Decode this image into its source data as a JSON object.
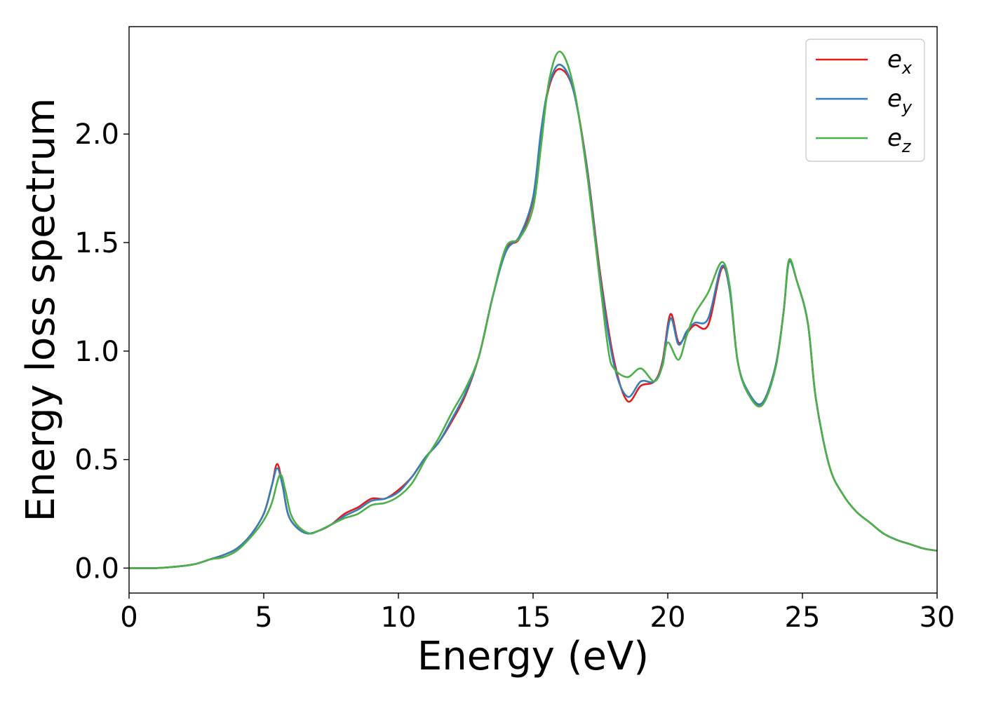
{
  "chart_data": {
    "type": "line",
    "xlabel": "Energy (eV)",
    "ylabel": "Energy loss spectrum",
    "xlim": [
      0,
      30
    ],
    "ylim": [
      -0.115,
      2.495
    ],
    "xticks": [
      "0",
      "5",
      "10",
      "15",
      "20",
      "25",
      "30"
    ],
    "yticks": [
      "0.0",
      "0.5",
      "1.0",
      "1.5",
      "2.0"
    ],
    "grid": false,
    "legend_position": "top-right",
    "series": [
      {
        "name": "e",
        "subscript": "x",
        "color": "#e41a1c",
        "points": [
          [
            0,
            0.0
          ],
          [
            1,
            0.0
          ],
          [
            2,
            0.01
          ],
          [
            2.5,
            0.02
          ],
          [
            3,
            0.04
          ],
          [
            3.5,
            0.06
          ],
          [
            4,
            0.09
          ],
          [
            4.5,
            0.15
          ],
          [
            5,
            0.25
          ],
          [
            5.3,
            0.38
          ],
          [
            5.5,
            0.48
          ],
          [
            5.7,
            0.38
          ],
          [
            5.9,
            0.25
          ],
          [
            6.2,
            0.19
          ],
          [
            6.6,
            0.16
          ],
          [
            7,
            0.17
          ],
          [
            7.5,
            0.2
          ],
          [
            8,
            0.25
          ],
          [
            8.5,
            0.28
          ],
          [
            9,
            0.32
          ],
          [
            9.5,
            0.32
          ],
          [
            10,
            0.36
          ],
          [
            10.5,
            0.42
          ],
          [
            11,
            0.51
          ],
          [
            11.5,
            0.58
          ],
          [
            12,
            0.68
          ],
          [
            12.5,
            0.8
          ],
          [
            13,
            0.98
          ],
          [
            13.5,
            1.25
          ],
          [
            14,
            1.47
          ],
          [
            14.5,
            1.52
          ],
          [
            15,
            1.7
          ],
          [
            15.3,
            2.0
          ],
          [
            15.6,
            2.22
          ],
          [
            16,
            2.3
          ],
          [
            16.5,
            2.2
          ],
          [
            17,
            1.85
          ],
          [
            17.5,
            1.35
          ],
          [
            18,
            0.96
          ],
          [
            18.5,
            0.77
          ],
          [
            19,
            0.84
          ],
          [
            19.5,
            0.86
          ],
          [
            19.8,
            0.95
          ],
          [
            20.1,
            1.17
          ],
          [
            20.4,
            1.04
          ],
          [
            20.7,
            1.08
          ],
          [
            21,
            1.12
          ],
          [
            21.5,
            1.12
          ],
          [
            22,
            1.38
          ],
          [
            22.3,
            1.28
          ],
          [
            22.6,
            0.95
          ],
          [
            23,
            0.8
          ],
          [
            23.5,
            0.76
          ],
          [
            24,
            0.93
          ],
          [
            24.3,
            1.18
          ],
          [
            24.5,
            1.41
          ],
          [
            24.8,
            1.32
          ],
          [
            25.2,
            1.13
          ],
          [
            25.5,
            0.78
          ],
          [
            26,
            0.47
          ],
          [
            26.5,
            0.34
          ],
          [
            27,
            0.26
          ],
          [
            27.5,
            0.21
          ],
          [
            28,
            0.16
          ],
          [
            28.5,
            0.13
          ],
          [
            29,
            0.11
          ],
          [
            29.5,
            0.09
          ],
          [
            30,
            0.08
          ]
        ]
      },
      {
        "name": "e",
        "subscript": "y",
        "color": "#377eb8",
        "points": [
          [
            0,
            0.0
          ],
          [
            1,
            0.0
          ],
          [
            2,
            0.01
          ],
          [
            2.5,
            0.02
          ],
          [
            3,
            0.04
          ],
          [
            3.5,
            0.06
          ],
          [
            4,
            0.09
          ],
          [
            4.5,
            0.15
          ],
          [
            5,
            0.25
          ],
          [
            5.3,
            0.38
          ],
          [
            5.5,
            0.46
          ],
          [
            5.7,
            0.38
          ],
          [
            5.9,
            0.25
          ],
          [
            6.2,
            0.19
          ],
          [
            6.6,
            0.16
          ],
          [
            7,
            0.17
          ],
          [
            7.5,
            0.2
          ],
          [
            8,
            0.24
          ],
          [
            8.5,
            0.27
          ],
          [
            9,
            0.31
          ],
          [
            9.5,
            0.32
          ],
          [
            10,
            0.35
          ],
          [
            10.5,
            0.42
          ],
          [
            11,
            0.51
          ],
          [
            11.5,
            0.58
          ],
          [
            12,
            0.69
          ],
          [
            12.5,
            0.81
          ],
          [
            13,
            0.98
          ],
          [
            13.5,
            1.25
          ],
          [
            14,
            1.46
          ],
          [
            14.5,
            1.53
          ],
          [
            15,
            1.71
          ],
          [
            15.3,
            2.02
          ],
          [
            15.6,
            2.23
          ],
          [
            16,
            2.32
          ],
          [
            16.5,
            2.2
          ],
          [
            17,
            1.84
          ],
          [
            17.5,
            1.33
          ],
          [
            18,
            0.94
          ],
          [
            18.5,
            0.79
          ],
          [
            19,
            0.86
          ],
          [
            19.5,
            0.86
          ],
          [
            19.8,
            0.94
          ],
          [
            20.1,
            1.15
          ],
          [
            20.4,
            1.03
          ],
          [
            20.7,
            1.09
          ],
          [
            21,
            1.13
          ],
          [
            21.5,
            1.15
          ],
          [
            22,
            1.39
          ],
          [
            22.3,
            1.28
          ],
          [
            22.6,
            0.95
          ],
          [
            23,
            0.81
          ],
          [
            23.5,
            0.76
          ],
          [
            24,
            0.93
          ],
          [
            24.3,
            1.18
          ],
          [
            24.5,
            1.41
          ],
          [
            24.8,
            1.32
          ],
          [
            25.2,
            1.13
          ],
          [
            25.5,
            0.78
          ],
          [
            26,
            0.47
          ],
          [
            26.5,
            0.34
          ],
          [
            27,
            0.26
          ],
          [
            27.5,
            0.21
          ],
          [
            28,
            0.16
          ],
          [
            28.5,
            0.13
          ],
          [
            29,
            0.11
          ],
          [
            29.5,
            0.09
          ],
          [
            30,
            0.08
          ]
        ]
      },
      {
        "name": "e",
        "subscript": "z",
        "color": "#4daf4a",
        "points": [
          [
            0,
            0.0
          ],
          [
            1,
            0.0
          ],
          [
            2,
            0.01
          ],
          [
            2.5,
            0.02
          ],
          [
            3,
            0.04
          ],
          [
            3.5,
            0.05
          ],
          [
            4,
            0.08
          ],
          [
            4.5,
            0.14
          ],
          [
            5,
            0.22
          ],
          [
            5.3,
            0.3
          ],
          [
            5.6,
            0.43
          ],
          [
            5.8,
            0.36
          ],
          [
            6,
            0.25
          ],
          [
            6.3,
            0.19
          ],
          [
            6.7,
            0.16
          ],
          [
            7,
            0.17
          ],
          [
            7.5,
            0.2
          ],
          [
            8,
            0.23
          ],
          [
            8.5,
            0.25
          ],
          [
            9,
            0.29
          ],
          [
            9.5,
            0.3
          ],
          [
            10,
            0.33
          ],
          [
            10.5,
            0.39
          ],
          [
            11,
            0.5
          ],
          [
            11.5,
            0.6
          ],
          [
            12,
            0.72
          ],
          [
            12.5,
            0.83
          ],
          [
            13,
            0.98
          ],
          [
            13.5,
            1.25
          ],
          [
            14,
            1.48
          ],
          [
            14.5,
            1.52
          ],
          [
            15,
            1.66
          ],
          [
            15.3,
            1.95
          ],
          [
            15.6,
            2.25
          ],
          [
            16,
            2.38
          ],
          [
            16.5,
            2.22
          ],
          [
            17,
            1.82
          ],
          [
            17.5,
            1.3
          ],
          [
            17.8,
            1.0
          ],
          [
            18,
            0.92
          ],
          [
            18.5,
            0.88
          ],
          [
            19,
            0.92
          ],
          [
            19.5,
            0.86
          ],
          [
            19.8,
            0.93
          ],
          [
            20,
            1.04
          ],
          [
            20.4,
            0.96
          ],
          [
            20.7,
            1.07
          ],
          [
            21,
            1.17
          ],
          [
            21.5,
            1.27
          ],
          [
            22,
            1.41
          ],
          [
            22.3,
            1.3
          ],
          [
            22.6,
            0.95
          ],
          [
            23,
            0.8
          ],
          [
            23.5,
            0.75
          ],
          [
            24,
            0.92
          ],
          [
            24.3,
            1.18
          ],
          [
            24.5,
            1.42
          ],
          [
            24.8,
            1.32
          ],
          [
            25.2,
            1.13
          ],
          [
            25.5,
            0.78
          ],
          [
            26,
            0.47
          ],
          [
            26.5,
            0.34
          ],
          [
            27,
            0.26
          ],
          [
            27.5,
            0.21
          ],
          [
            28,
            0.16
          ],
          [
            28.5,
            0.13
          ],
          [
            29,
            0.11
          ],
          [
            29.5,
            0.09
          ],
          [
            30,
            0.08
          ]
        ]
      }
    ]
  }
}
